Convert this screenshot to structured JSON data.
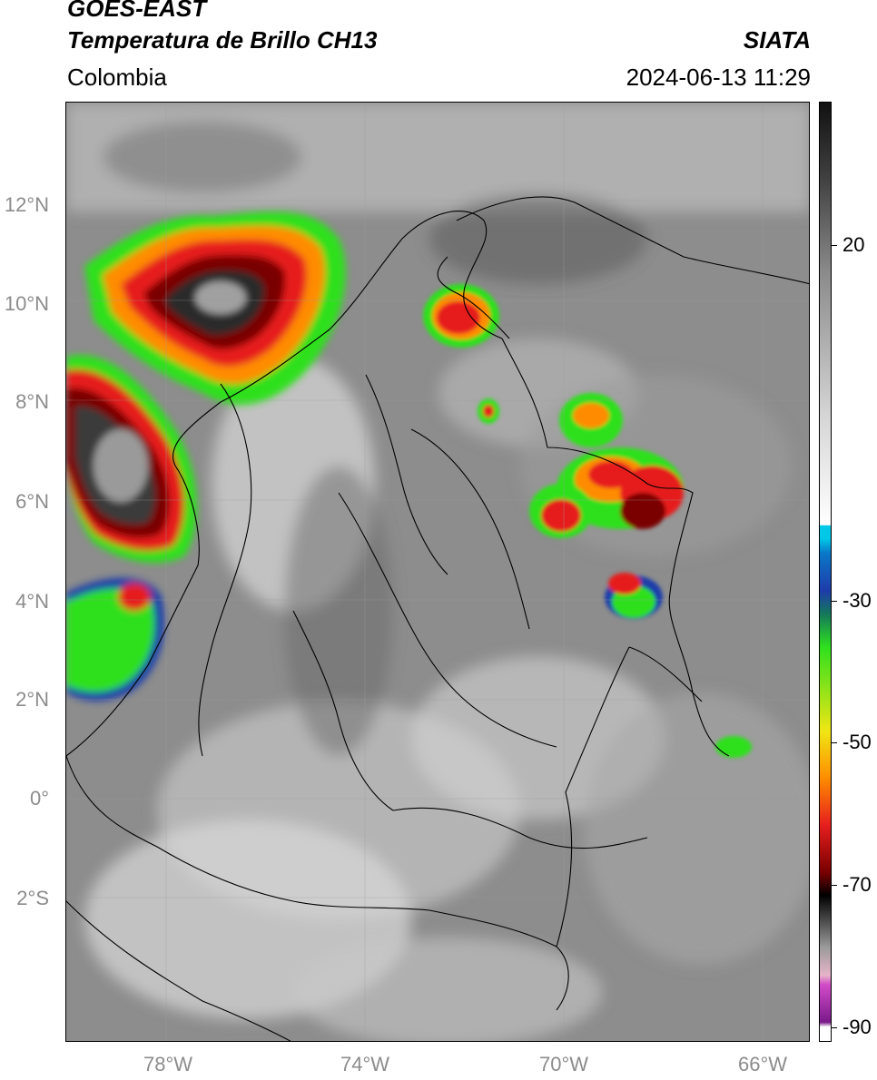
{
  "header": {
    "satellite": "GOES-EAST",
    "product": "Temperatura de Brillo CH13",
    "agency": "SIATA",
    "region": "Colombia",
    "timestamp": "2024-06-13 11:29"
  },
  "axes": {
    "lat_ticks": [
      "12°N",
      "10°N",
      "8°N",
      "6°N",
      "4°N",
      "2°N",
      "0°",
      "2°S"
    ],
    "lon_ticks": [
      "78°W",
      "74°W",
      "70°W",
      "66°W"
    ]
  },
  "colorbar": {
    "ticks": [
      "20",
      "-30",
      "-50",
      "-70",
      "-90"
    ],
    "colors": {
      "cyan": "#00c8e6",
      "blue": "#1e3caa",
      "green": "#2ee01e",
      "yellow": "#f0e614",
      "orange": "#ff8c00",
      "red": "#e61e1e",
      "darkred": "#7a0000",
      "black": "#000000",
      "magenta": "#d24bc8",
      "purple": "#7a1a8a"
    }
  }
}
